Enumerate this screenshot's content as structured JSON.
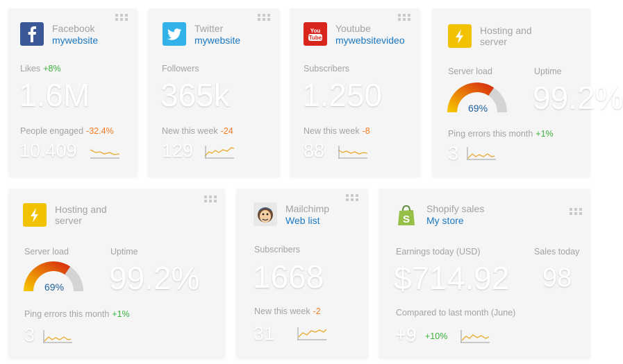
{
  "cards": {
    "facebook": {
      "name": "Facebook",
      "account": "mywebsite",
      "metric_label": "Likes",
      "metric_change": "+8%",
      "metric_value": "1.6M",
      "sub_label": "People engaged",
      "sub_change": "-32.4%",
      "sub_value": "10.409",
      "logo_color": "#3b5998"
    },
    "twitter": {
      "name": "Twitter",
      "account": "mywebsite",
      "metric_label": "Followers",
      "metric_value": "365k",
      "sub_label": "New this week",
      "sub_change": "-24",
      "sub_value": "129",
      "logo_color": "#33b2ea"
    },
    "youtube": {
      "name": "Youtube",
      "account": "mywebsitevideo",
      "metric_label": "Subscribers",
      "metric_value": "1.250",
      "sub_label": "New this week",
      "sub_change": "-8",
      "sub_value": "88",
      "logo_color": "#d9261c"
    },
    "hosting_top": {
      "name_line1": "Hosting and",
      "name_line2": "server",
      "load_label": "Server load",
      "load_value": "69%",
      "load_fraction": 0.69,
      "uptime_label": "Uptime",
      "uptime_value": "99.2%",
      "ping_label": "Ping errors this month",
      "ping_change": "+1%",
      "ping_value": "3",
      "logo_color": "#f2c200"
    },
    "hosting_bottom": {
      "name_line1": "Hosting and",
      "name_line2": "server",
      "load_label": "Server load",
      "load_value": "69%",
      "load_fraction": 0.69,
      "uptime_label": "Uptime",
      "uptime_value": "99.2%",
      "ping_label": "Ping errors this month",
      "ping_change": "+1%",
      "ping_value": "3",
      "logo_color": "#f2c200"
    },
    "mailchimp": {
      "name": "Mailchimp",
      "account": "Web list",
      "metric_label": "Subscribers",
      "metric_value": "1668",
      "sub_label": "New this week",
      "sub_change": "-2",
      "sub_value": "31"
    },
    "shopify": {
      "name": "Shopify sales",
      "account": "My store",
      "earnings_label": "Earnings today (USD)",
      "earnings_value": "$714.92",
      "sales_label": "Sales today",
      "sales_value": "98",
      "compare_label": "Compared to last month (June)",
      "compare_value": "+9",
      "compare_change": "+10%",
      "logo_color": "#95bf47"
    }
  },
  "colors": {
    "positive": "#3bb13b",
    "negative": "#f57a1f",
    "link": "#1a78c2",
    "spark": "#e9a92b"
  }
}
